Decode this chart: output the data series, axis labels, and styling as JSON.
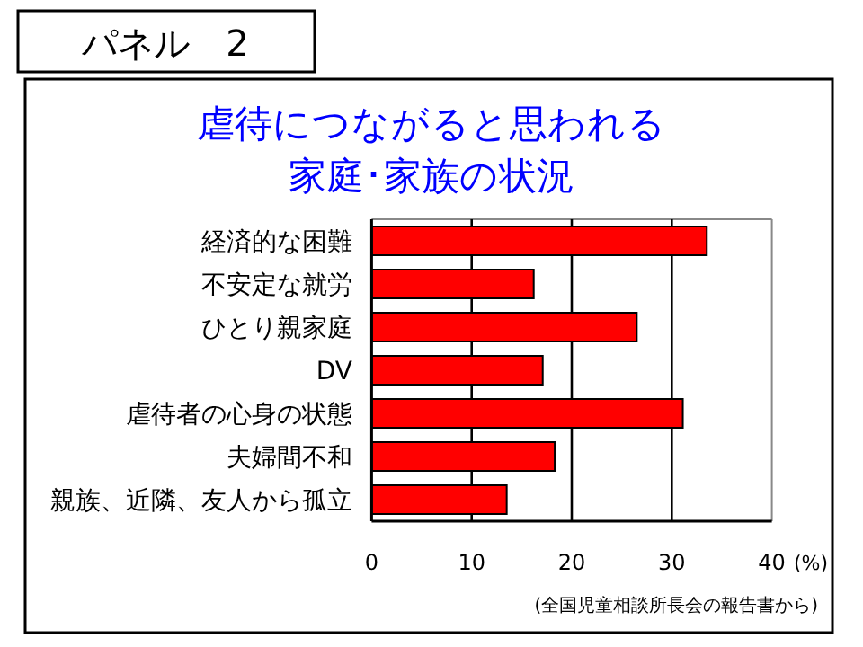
{
  "chart_data": {
    "type": "bar",
    "orientation": "horizontal",
    "title": "虐待につながると思われる",
    "subtitle": "家庭･家族の状況",
    "xlabel": "(%)",
    "annotations": [
      "パネル　2",
      "(全国児童相談所長会の報告書から)"
    ],
    "categories": [
      "経済的な困難",
      "不安定な就労",
      "ひとり親家庭",
      "DV",
      "虐待者の心身の状態",
      "夫婦間不和",
      "親族、近隣、友人から孤立"
    ],
    "values": [
      33.5,
      16.2,
      26.5,
      17.1,
      31.1,
      18.3,
      13.5
    ],
    "color": "#ff0000",
    "xlim": [
      0,
      40
    ],
    "xticks": [
      0,
      10,
      20,
      30,
      40
    ],
    "grid": "x"
  }
}
